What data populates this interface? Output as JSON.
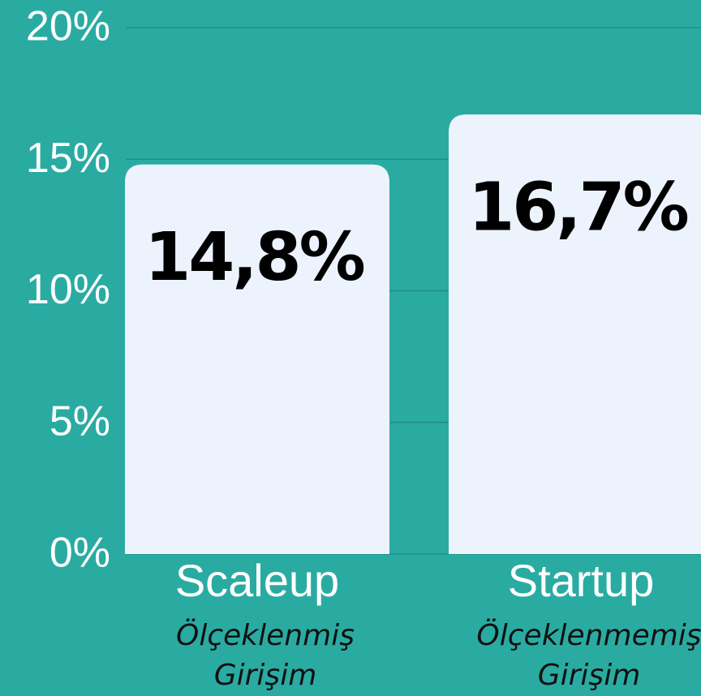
{
  "chart_data": {
    "type": "bar",
    "categories": [
      "Scaleup",
      "Startup"
    ],
    "category_sublabels": [
      [
        "Ölçeklenmiş",
        "Girişim"
      ],
      [
        "Ölçeklenmemiş",
        "Girişim"
      ]
    ],
    "values": [
      14.8,
      16.7
    ],
    "value_labels": [
      "14,8%",
      "16,7%"
    ],
    "color": "#edf3fd",
    "ylim": [
      0,
      20
    ],
    "yticks": [
      {
        "value": 0,
        "label": "0%"
      },
      {
        "value": 5,
        "label": "5%"
      },
      {
        "value": 10,
        "label": "10%"
      },
      {
        "value": 15,
        "label": "15%"
      },
      {
        "value": 20,
        "label": "20%"
      }
    ],
    "grid": true
  }
}
